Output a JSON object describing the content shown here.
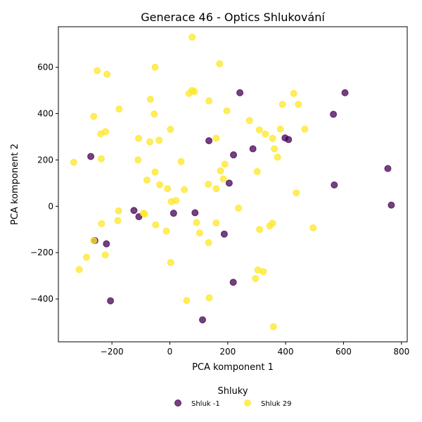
{
  "chart_data": {
    "type": "scatter",
    "title": "Generace 46 - Optics Shlukování",
    "xlabel": "PCA komponent 1",
    "ylabel": "PCA komponent 2",
    "xlim": [
      -385,
      820
    ],
    "ylim": [
      -585,
      775
    ],
    "xticks": [
      -200,
      0,
      200,
      400,
      600,
      800
    ],
    "yticks": [
      -400,
      -200,
      0,
      200,
      400,
      600
    ],
    "grid": false,
    "legend": {
      "title": "Shluky",
      "placement": "bottom-center"
    },
    "series": [
      {
        "name": "Shluk -1",
        "color": "#440154",
        "points": [
          [
            242,
            490
          ],
          [
            605,
            490
          ],
          [
            565,
            397
          ],
          [
            398,
            295
          ],
          [
            410,
            288
          ],
          [
            135,
            283
          ],
          [
            287,
            248
          ],
          [
            220,
            222
          ],
          [
            -273,
            215
          ],
          [
            753,
            163
          ],
          [
            205,
            100
          ],
          [
            568,
            92
          ],
          [
            765,
            5
          ],
          [
            -124,
            -18
          ],
          [
            87,
            -28
          ],
          [
            13,
            -30
          ],
          [
            -107,
            -45
          ],
          [
            -259,
            -148
          ],
          [
            -219,
            -162
          ],
          [
            188,
            -120
          ],
          [
            -205,
            -408
          ],
          [
            219,
            -328
          ],
          [
            113,
            -490
          ]
        ]
      },
      {
        "name": "Shluk 29",
        "color": "#fde725",
        "points": [
          [
            77,
            730
          ],
          [
            -251,
            585
          ],
          [
            -217,
            570
          ],
          [
            -51,
            600
          ],
          [
            172,
            615
          ],
          [
            77,
            500
          ],
          [
            85,
            495
          ],
          [
            66,
            487
          ],
          [
            428,
            487
          ],
          [
            -67,
            462
          ],
          [
            135,
            455
          ],
          [
            389,
            440
          ],
          [
            444,
            440
          ],
          [
            -175,
            420
          ],
          [
            -54,
            398
          ],
          [
            -263,
            388
          ],
          [
            197,
            412
          ],
          [
            275,
            370
          ],
          [
            -222,
            322
          ],
          [
            -239,
            313
          ],
          [
            309,
            330
          ],
          [
            330,
            312
          ],
          [
            382,
            333
          ],
          [
            466,
            333
          ],
          [
            2,
            332
          ],
          [
            -108,
            293
          ],
          [
            -69,
            278
          ],
          [
            -37,
            285
          ],
          [
            160,
            294
          ],
          [
            355,
            293
          ],
          [
            361,
            248
          ],
          [
            372,
            212
          ],
          [
            -237,
            205
          ],
          [
            -110,
            200
          ],
          [
            39,
            193
          ],
          [
            -332,
            190
          ],
          [
            190,
            182
          ],
          [
            -51,
            148
          ],
          [
            175,
            153
          ],
          [
            302,
            150
          ],
          [
            -79,
            113
          ],
          [
            185,
            118
          ],
          [
            -35,
            93
          ],
          [
            133,
            95
          ],
          [
            -8,
            76
          ],
          [
            50,
            72
          ],
          [
            160,
            76
          ],
          [
            437,
            58
          ],
          [
            5,
            20
          ],
          [
            21,
            25
          ],
          [
            -177,
            -20
          ],
          [
            237,
            -8
          ],
          [
            -91,
            -30
          ],
          [
            -87,
            -33
          ],
          [
            -236,
            -75
          ],
          [
            -180,
            -62
          ],
          [
            -49,
            -80
          ],
          [
            92,
            -70
          ],
          [
            160,
            -72
          ],
          [
            355,
            -73
          ],
          [
            345,
            -85
          ],
          [
            310,
            -100
          ],
          [
            495,
            -93
          ],
          [
            -12,
            -107
          ],
          [
            103,
            -115
          ],
          [
            134,
            -157
          ],
          [
            -263,
            -148
          ],
          [
            -223,
            -210
          ],
          [
            -288,
            -220
          ],
          [
            3,
            -243
          ],
          [
            -313,
            -273
          ],
          [
            304,
            -275
          ],
          [
            323,
            -282
          ],
          [
            296,
            -312
          ],
          [
            58,
            -407
          ],
          [
            136,
            -395
          ],
          [
            358,
            -520
          ]
        ]
      }
    ]
  }
}
